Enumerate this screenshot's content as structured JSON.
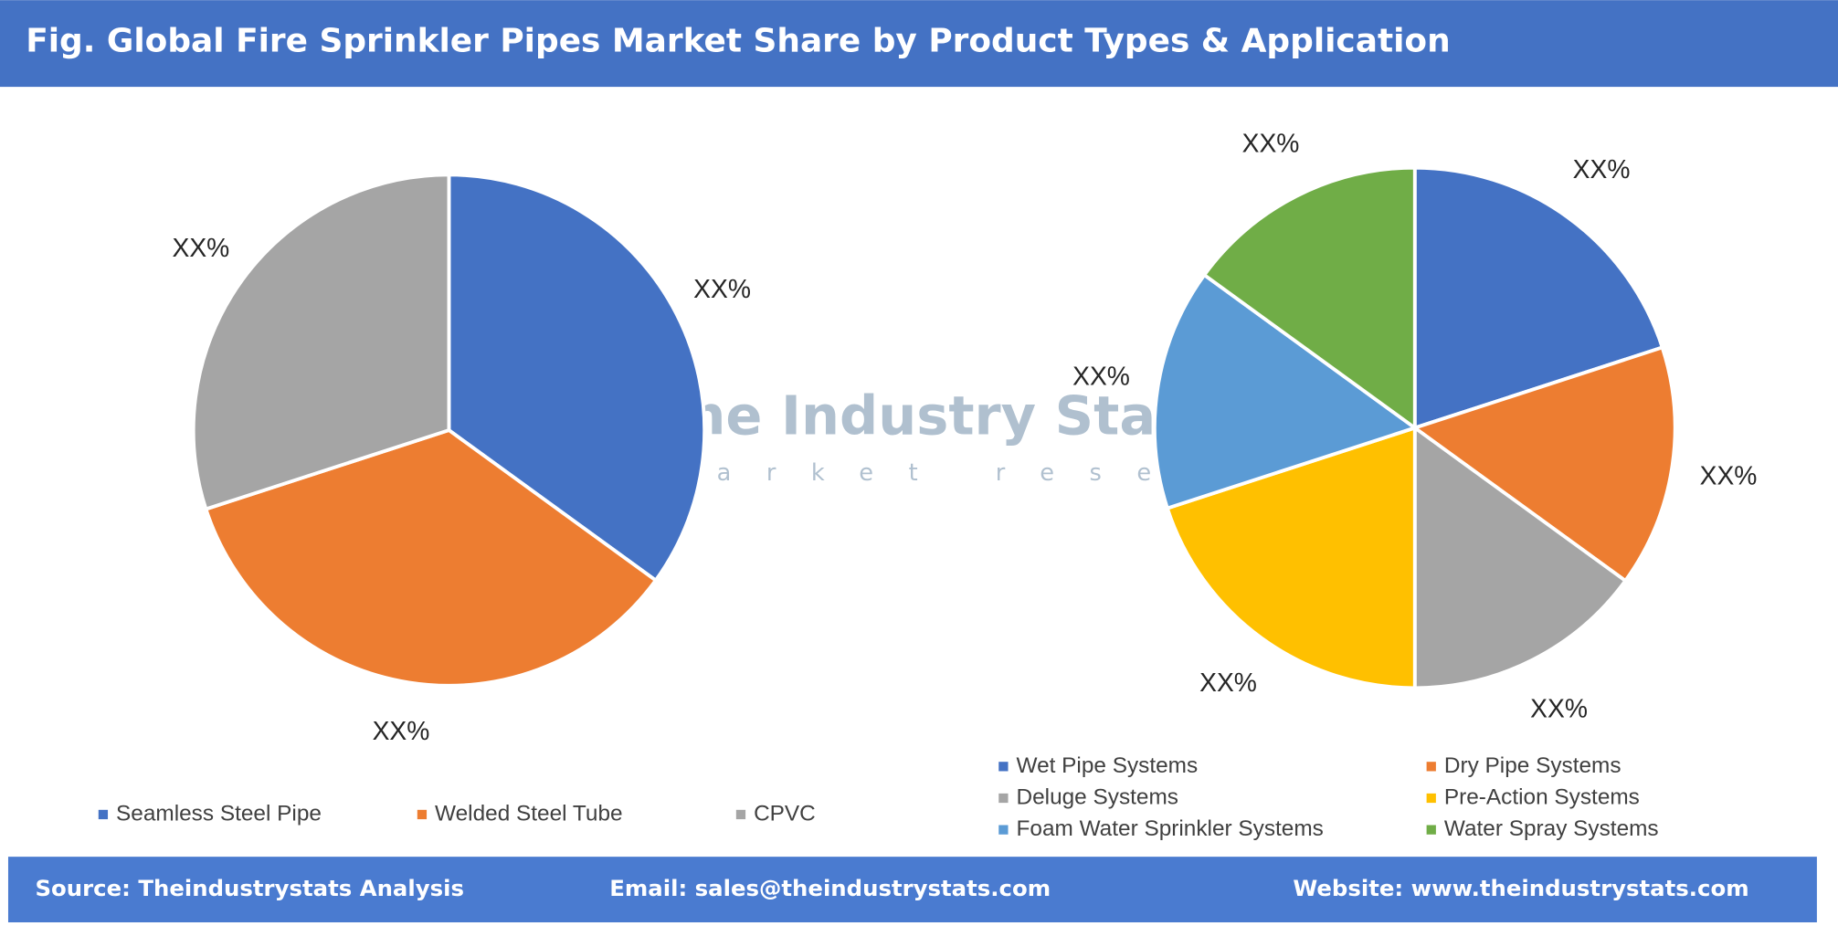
{
  "header": {
    "title": "Fig. Global Fire Sprinkler Pipes Market Share by Product Types & Application"
  },
  "watermark": {
    "title": "The Industry Stats",
    "subtitle": "market research"
  },
  "footer": {
    "source": "Source: Theindustrystats Analysis",
    "email": "Email: sales@theindustrystats.com",
    "website": "Website: www.theindustrystats.com"
  },
  "chart_data": [
    {
      "type": "pie",
      "categories": [
        "Seamless Steel Pipe",
        "Welded Steel Tube",
        "CPVC"
      ],
      "values": [
        35,
        35,
        30
      ],
      "value_labels": [
        "XX%",
        "XX%",
        "XX%"
      ],
      "colors": [
        "#4472c4",
        "#ed7d31",
        "#a5a5a5"
      ]
    },
    {
      "type": "pie",
      "categories": [
        "Wet Pipe Systems",
        "Dry Pipe Systems",
        "Deluge Systems",
        "Pre-Action Systems",
        "Foam Water Sprinkler Systems",
        "Water Spray Systems"
      ],
      "values": [
        20,
        15,
        15,
        20,
        15,
        15
      ],
      "value_labels": [
        "XX%",
        "XX%",
        "XX%",
        "XX%",
        "XX%",
        "XX%"
      ],
      "colors": [
        "#4472c4",
        "#ed7d31",
        "#a5a5a5",
        "#ffc000",
        "#5b9bd5",
        "#70ad47"
      ]
    }
  ]
}
